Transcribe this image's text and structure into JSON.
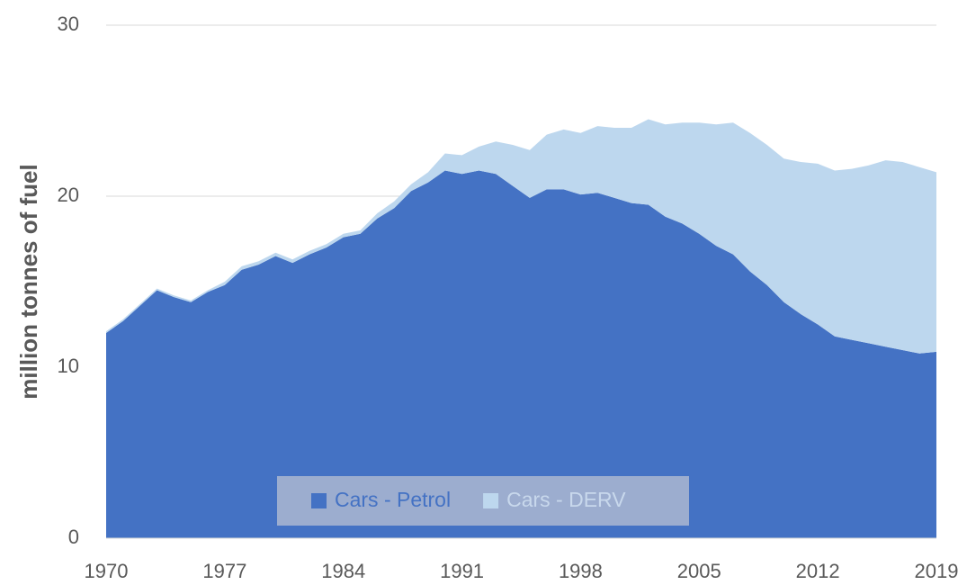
{
  "chart_data": {
    "type": "stacked-area",
    "y_label": "million tonnes of fuel",
    "x": [
      1970,
      1971,
      1972,
      1973,
      1974,
      1975,
      1976,
      1977,
      1978,
      1979,
      1980,
      1981,
      1982,
      1983,
      1984,
      1985,
      1986,
      1987,
      1988,
      1989,
      1990,
      1991,
      1992,
      1993,
      1994,
      1995,
      1996,
      1997,
      1998,
      1999,
      2000,
      2001,
      2002,
      2003,
      2004,
      2005,
      2006,
      2007,
      2008,
      2009,
      2010,
      2011,
      2012,
      2013,
      2014,
      2015,
      2016,
      2017,
      2018,
      2019
    ],
    "series": [
      {
        "name": "Cars - Petrol",
        "color": "#4472c4",
        "values": [
          12.0,
          12.7,
          13.6,
          14.5,
          14.1,
          13.8,
          14.4,
          14.8,
          15.7,
          16.0,
          16.5,
          16.1,
          16.6,
          17.0,
          17.6,
          17.8,
          18.7,
          19.3,
          20.3,
          20.8,
          21.5,
          21.3,
          21.5,
          21.3,
          20.6,
          19.9,
          20.4,
          20.4,
          20.1,
          20.2,
          19.9,
          19.6,
          19.5,
          18.8,
          18.4,
          17.8,
          17.1,
          16.6,
          15.6,
          14.8,
          13.8,
          13.1,
          12.5,
          11.8,
          11.6,
          11.4,
          11.2,
          11.0,
          10.8,
          10.9
        ]
      },
      {
        "name": "Cars - DERV",
        "color": "#bdd7ee",
        "values": [
          0.1,
          0.1,
          0.1,
          0.1,
          0.1,
          0.1,
          0.1,
          0.2,
          0.2,
          0.2,
          0.2,
          0.2,
          0.2,
          0.2,
          0.2,
          0.2,
          0.3,
          0.4,
          0.4,
          0.6,
          1.0,
          1.1,
          1.4,
          1.9,
          2.4,
          2.8,
          3.2,
          3.5,
          3.6,
          3.9,
          4.1,
          4.4,
          5.0,
          5.4,
          5.9,
          6.5,
          7.1,
          7.7,
          8.1,
          8.2,
          8.4,
          8.9,
          9.4,
          9.7,
          10.0,
          10.4,
          10.9,
          11.0,
          10.9,
          10.5
        ]
      }
    ],
    "xlim": [
      1970,
      2019
    ],
    "xticks": [
      1970,
      1977,
      1984,
      1991,
      1998,
      2005,
      2012,
      2019
    ],
    "ylim": [
      0,
      30
    ],
    "yticks": [
      0,
      10,
      20,
      30
    ],
    "grid": true,
    "legend": "bottom"
  }
}
